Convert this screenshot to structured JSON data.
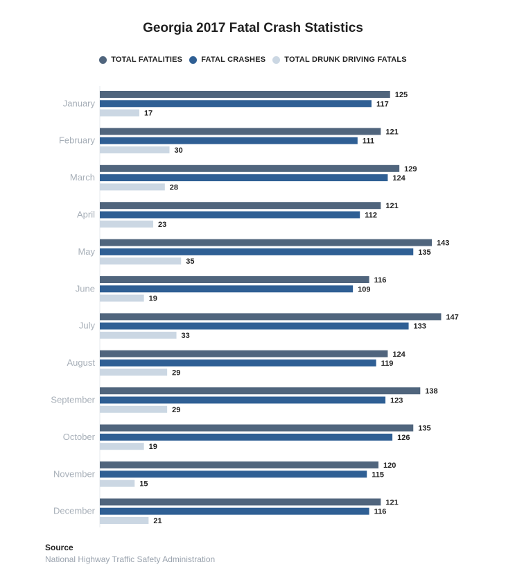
{
  "chart_data": {
    "type": "bar",
    "orientation": "horizontal",
    "title": "Georgia 2017 Fatal Crash Statistics",
    "categories": [
      "January",
      "February",
      "March",
      "April",
      "May",
      "June",
      "July",
      "August",
      "September",
      "October",
      "November",
      "December"
    ],
    "series": [
      {
        "name": "TOTAL FATALITIES",
        "color": "#50657d",
        "values": [
          125,
          121,
          129,
          121,
          143,
          116,
          147,
          124,
          138,
          135,
          120,
          121
        ]
      },
      {
        "name": "FATAL CRASHES",
        "color": "#2f5f94",
        "values": [
          117,
          111,
          124,
          112,
          135,
          109,
          133,
          119,
          123,
          126,
          115,
          116
        ]
      },
      {
        "name": "TOTAL DRUNK DRIVING FATALS",
        "color": "#cbd7e3",
        "values": [
          17,
          30,
          28,
          23,
          35,
          19,
          33,
          29,
          29,
          19,
          15,
          21
        ]
      }
    ],
    "xlim": [
      0,
      150
    ],
    "legend_position": "top",
    "grid": false
  },
  "source": {
    "title": "Source",
    "text": "National Highway Traffic Safety Administration"
  }
}
